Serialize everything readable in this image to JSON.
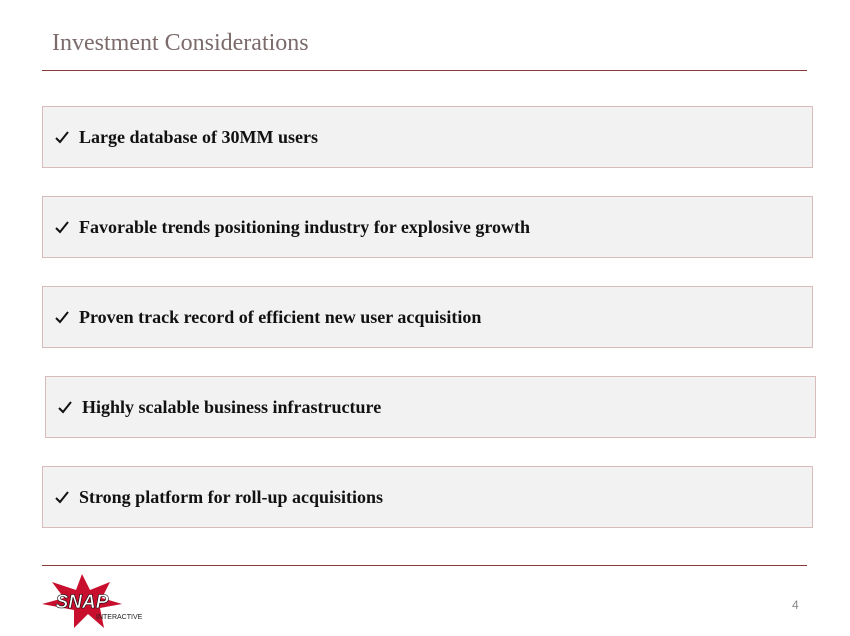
{
  "header": {
    "title": "Investment Considerations"
  },
  "items": [
    "Large database of 30MM users",
    "Favorable trends positioning industry for explosive growth",
    "Proven track record of efficient new user acquisition",
    "Highly scalable business infrastructure",
    "Strong platform for roll-up acquisitions"
  ],
  "footer": {
    "logo": {
      "name": "SNAP",
      "tagline": "INTERACTIVE"
    },
    "page_number": "4"
  }
}
